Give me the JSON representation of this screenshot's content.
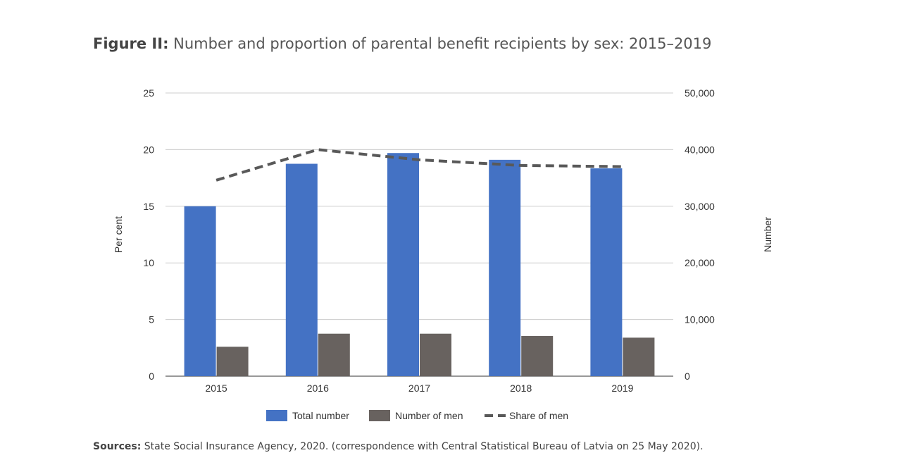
{
  "title": {
    "prefix": "Figure II:",
    "text": "Number and proportion of parental benefit recipients by sex: 2015–2019"
  },
  "sources": {
    "label": "Sources:",
    "text": "State Social Insurance Agency, 2020. (correspondence with Central Statistical Bureau of Latvia on 25 May 2020)."
  },
  "chart_data": {
    "type": "bar",
    "categories": [
      "2015",
      "2016",
      "2017",
      "2018",
      "2019"
    ],
    "series": [
      {
        "name": "Total number",
        "type": "bar",
        "axis": "right",
        "color": "#4472c4",
        "values": [
          30000,
          37500,
          39400,
          38200,
          36700
        ]
      },
      {
        "name": "Number of men",
        "type": "bar",
        "axis": "right",
        "color": "#68625f",
        "values": [
          5200,
          7500,
          7500,
          7100,
          6800
        ]
      },
      {
        "name": "Share of men",
        "type": "line",
        "style": "dashed",
        "axis": "left",
        "color": "#595959",
        "values": [
          17.3,
          20.0,
          19.1,
          18.6,
          18.5
        ]
      }
    ],
    "ylabel_left": "Per cent",
    "ylim_left": [
      0,
      25
    ],
    "yticks_left": [
      "0",
      "5",
      "10",
      "15",
      "20",
      "25"
    ],
    "ylabel_right": "Number",
    "ylim_right": [
      0,
      50000
    ],
    "yticks_right": [
      "0",
      "10,000",
      "20,000",
      "30,000",
      "40,000",
      "50,000"
    ],
    "grid": true,
    "legend_position": "bottom"
  }
}
